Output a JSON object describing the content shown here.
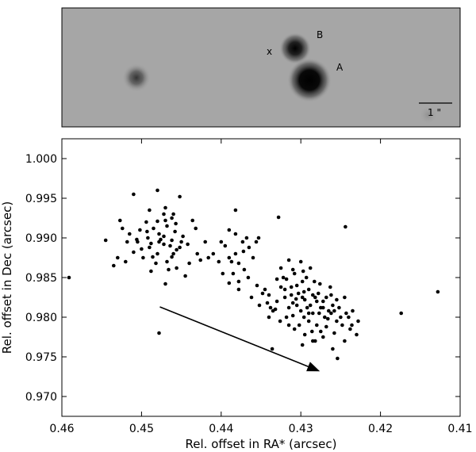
{
  "image_panel": {
    "background": "#a6a6a6",
    "labels": {
      "x": "x",
      "b": "B",
      "a": "A"
    },
    "scale_bar_label": "1 \""
  },
  "chart_data": {
    "type": "scatter",
    "title": "",
    "xlabel": "Rel. offset in RA* (arcsec)",
    "ylabel": "Rel. offset in Dec (arcsec)",
    "xlim": [
      0.46,
      0.41
    ],
    "ylim": [
      0.9675,
      1.0025
    ],
    "x_reversed": true,
    "xticks": [
      0.46,
      0.45,
      0.44,
      0.43,
      0.42,
      0.41
    ],
    "xtick_labels": [
      "0.46",
      "0.45",
      "0.44",
      "0.43",
      "0.42",
      "0.41"
    ],
    "yticks": [
      0.97,
      0.975,
      0.98,
      0.985,
      0.99,
      0.995,
      1.0
    ],
    "ytick_labels": [
      "0.970",
      "0.975",
      "0.980",
      "0.985",
      "0.990",
      "0.995",
      "1.000"
    ],
    "grid": false,
    "point_color": "#000000",
    "arrow": {
      "from": [
        0.4477,
        0.9813
      ],
      "to": [
        0.4279,
        0.9733
      ]
    },
    "points": [
      [
        0.4591,
        0.985
      ],
      [
        0.451,
        0.9955
      ],
      [
        0.448,
        0.996
      ],
      [
        0.4452,
        0.9952
      ],
      [
        0.4382,
        0.9935
      ],
      [
        0.4328,
        0.9926
      ],
      [
        0.4244,
        0.9914
      ],
      [
        0.4128,
        0.9832
      ],
      [
        0.4174,
        0.9805
      ],
      [
        0.4478,
        0.978
      ],
      [
        0.4336,
        0.976
      ],
      [
        0.4254,
        0.9748
      ],
      [
        0.4472,
        0.9892
      ],
      [
        0.449,
        0.9888
      ],
      [
        0.4462,
        0.9897
      ],
      [
        0.4478,
        0.9905
      ],
      [
        0.4498,
        0.9875
      ],
      [
        0.4506,
        0.9898
      ],
      [
        0.4456,
        0.9885
      ],
      [
        0.4468,
        0.987
      ],
      [
        0.4485,
        0.9912
      ],
      [
        0.447,
        0.9922
      ],
      [
        0.4458,
        0.9908
      ],
      [
        0.4492,
        0.99
      ],
      [
        0.448,
        0.988
      ],
      [
        0.4462,
        0.9876
      ],
      [
        0.451,
        0.9882
      ],
      [
        0.452,
        0.987
      ],
      [
        0.4476,
        0.9898
      ],
      [
        0.4494,
        0.992
      ],
      [
        0.4448,
        0.9902
      ],
      [
        0.4468,
        0.9915
      ],
      [
        0.4482,
        0.9868
      ],
      [
        0.4502,
        0.991
      ],
      [
        0.4515,
        0.9905
      ],
      [
        0.4464,
        0.989
      ],
      [
        0.4472,
        0.993
      ],
      [
        0.445,
        0.9895
      ],
      [
        0.4488,
        0.9893
      ],
      [
        0.4457,
        0.9918
      ],
      [
        0.45,
        0.9886
      ],
      [
        0.4478,
        0.9895
      ],
      [
        0.4466,
        0.986
      ],
      [
        0.4486,
        0.9876
      ],
      [
        0.446,
        0.988
      ],
      [
        0.4505,
        0.9895
      ],
      [
        0.4472,
        0.9902
      ],
      [
        0.4493,
        0.9908
      ],
      [
        0.4452,
        0.9888
      ],
      [
        0.448,
        0.9921
      ],
      [
        0.4527,
        0.9922
      ],
      [
        0.4518,
        0.9895
      ],
      [
        0.4535,
        0.9865
      ],
      [
        0.4545,
        0.9897
      ],
      [
        0.453,
        0.9875
      ],
      [
        0.449,
        0.9935
      ],
      [
        0.447,
        0.9938
      ],
      [
        0.446,
        0.993
      ],
      [
        0.447,
        0.9842
      ],
      [
        0.4488,
        0.9858
      ],
      [
        0.444,
        0.9868
      ],
      [
        0.4445,
        0.9852
      ],
      [
        0.4456,
        0.9862
      ],
      [
        0.443,
        0.988
      ],
      [
        0.4426,
        0.9872
      ],
      [
        0.4432,
        0.9912
      ],
      [
        0.442,
        0.9895
      ],
      [
        0.4416,
        0.9875
      ],
      [
        0.4436,
        0.9922
      ],
      [
        0.4524,
        0.9912
      ],
      [
        0.4442,
        0.9892
      ],
      [
        0.4462,
        0.9925
      ],
      [
        0.4368,
        0.99
      ],
      [
        0.4382,
        0.988
      ],
      [
        0.4378,
        0.9868
      ],
      [
        0.439,
        0.9875
      ],
      [
        0.4395,
        0.989
      ],
      [
        0.4385,
        0.9855
      ],
      [
        0.4378,
        0.9845
      ],
      [
        0.4371,
        0.986
      ],
      [
        0.436,
        0.9875
      ],
      [
        0.4372,
        0.9883
      ],
      [
        0.44,
        0.9895
      ],
      [
        0.4403,
        0.987
      ],
      [
        0.439,
        0.991
      ],
      [
        0.4365,
        0.9888
      ],
      [
        0.4382,
        0.9905
      ],
      [
        0.4356,
        0.9895
      ],
      [
        0.4353,
        0.99
      ],
      [
        0.441,
        0.988
      ],
      [
        0.4378,
        0.9835
      ],
      [
        0.4398,
        0.9855
      ],
      [
        0.4366,
        0.985
      ],
      [
        0.439,
        0.9843
      ],
      [
        0.4373,
        0.9895
      ],
      [
        0.4387,
        0.987
      ],
      [
        0.4303,
        0.983
      ],
      [
        0.4295,
        0.9822
      ],
      [
        0.4288,
        0.9815
      ],
      [
        0.43,
        0.9808
      ],
      [
        0.4282,
        0.9825
      ],
      [
        0.431,
        0.9818
      ],
      [
        0.4275,
        0.9812
      ],
      [
        0.429,
        0.9835
      ],
      [
        0.4305,
        0.984
      ],
      [
        0.4296,
        0.98
      ],
      [
        0.4285,
        0.9805
      ],
      [
        0.4272,
        0.982
      ],
      [
        0.4312,
        0.9828
      ],
      [
        0.432,
        0.9825
      ],
      [
        0.428,
        0.979
      ],
      [
        0.4265,
        0.9808
      ],
      [
        0.4298,
        0.9845
      ],
      [
        0.4315,
        0.9812
      ],
      [
        0.4325,
        0.9838
      ],
      [
        0.4308,
        0.9855
      ],
      [
        0.429,
        0.9795
      ],
      [
        0.427,
        0.98
      ],
      [
        0.426,
        0.9815
      ],
      [
        0.4278,
        0.983
      ],
      [
        0.433,
        0.982
      ],
      [
        0.4335,
        0.9808
      ],
      [
        0.4318,
        0.98
      ],
      [
        0.4302,
        0.979
      ],
      [
        0.4286,
        0.9782
      ],
      [
        0.4268,
        0.9788
      ],
      [
        0.4255,
        0.9795
      ],
      [
        0.4262,
        0.9828
      ],
      [
        0.4276,
        0.9842
      ],
      [
        0.4293,
        0.985
      ],
      [
        0.431,
        0.986
      ],
      [
        0.4322,
        0.985
      ],
      [
        0.434,
        0.9828
      ],
      [
        0.4345,
        0.9835
      ],
      [
        0.4338,
        0.9812
      ],
      [
        0.43,
        0.987
      ],
      [
        0.4288,
        0.9862
      ],
      [
        0.4315,
        0.9872
      ],
      [
        0.4258,
        0.978
      ],
      [
        0.4248,
        0.979
      ],
      [
        0.424,
        0.98
      ],
      [
        0.4252,
        0.9812
      ],
      [
        0.4245,
        0.9825
      ],
      [
        0.4235,
        0.9808
      ],
      [
        0.4238,
        0.9785
      ],
      [
        0.4245,
        0.977
      ],
      [
        0.423,
        0.9778
      ],
      [
        0.4228,
        0.9795
      ],
      [
        0.4272,
        0.9775
      ],
      [
        0.4282,
        0.977
      ],
      [
        0.4295,
        0.9778
      ],
      [
        0.4308,
        0.9785
      ],
      [
        0.4326,
        0.9795
      ],
      [
        0.434,
        0.98
      ],
      [
        0.4352,
        0.9815
      ],
      [
        0.4348,
        0.983
      ],
      [
        0.4362,
        0.9825
      ],
      [
        0.4355,
        0.984
      ],
      [
        0.4325,
        0.9862
      ],
      [
        0.4318,
        0.9848
      ],
      [
        0.4297,
        0.9858
      ],
      [
        0.4263,
        0.9838
      ],
      [
        0.4255,
        0.9822
      ],
      [
        0.4243,
        0.9805
      ],
      [
        0.4236,
        0.979
      ],
      [
        0.426,
        0.976
      ],
      [
        0.4275,
        0.9782
      ],
      [
        0.431,
        0.9802
      ],
      [
        0.4283,
        0.9845
      ],
      [
        0.4306,
        0.9823
      ],
      [
        0.4292,
        0.9812
      ],
      [
        0.4277,
        0.9805
      ],
      [
        0.4266,
        0.9798
      ],
      [
        0.432,
        0.9835
      ],
      [
        0.4285,
        0.9828
      ],
      [
        0.4298,
        0.9825
      ],
      [
        0.429,
        0.9805
      ],
      [
        0.4272,
        0.9812
      ],
      [
        0.4262,
        0.9805
      ],
      [
        0.425,
        0.98
      ],
      [
        0.4285,
        0.977
      ],
      [
        0.4298,
        0.9765
      ],
      [
        0.4315,
        0.979
      ],
      [
        0.4332,
        0.981
      ],
      [
        0.4342,
        0.9818
      ],
      [
        0.4305,
        0.9815
      ],
      [
        0.433,
        0.9848
      ],
      [
        0.4312,
        0.9838
      ],
      [
        0.4296,
        0.9832
      ],
      [
        0.428,
        0.982
      ],
      [
        0.4268,
        0.9825
      ],
      [
        0.4258,
        0.9808
      ]
    ]
  }
}
